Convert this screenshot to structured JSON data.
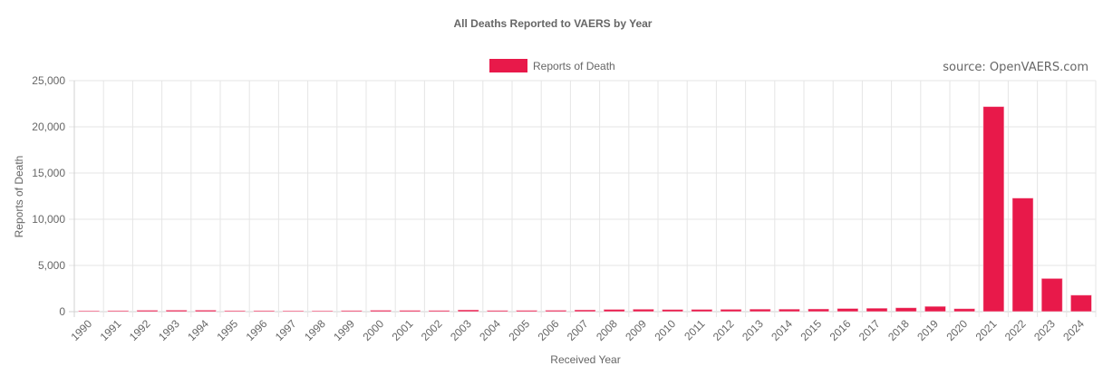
{
  "source_note": "source: OpenVAERS.com",
  "colors": {
    "bar_fill": "#e8194a",
    "bar_border": "#ffffff",
    "legend_fill": "#e8194a"
  },
  "chart_data": {
    "type": "bar",
    "title": "All Deaths Reported to VAERS by Year",
    "xlabel": "Received Year",
    "ylabel": "Reports of Death",
    "ylim": [
      0,
      25000
    ],
    "yticks": [
      0,
      5000,
      10000,
      15000,
      20000,
      25000
    ],
    "ytick_labels": [
      "0",
      "5,000",
      "10,000",
      "15,000",
      "20,000",
      "25,000"
    ],
    "grid": true,
    "legend_position": "top-center",
    "categories": [
      "1990",
      "1991",
      "1992",
      "1993",
      "1994",
      "1995",
      "1996",
      "1997",
      "1998",
      "1999",
      "2000",
      "2001",
      "2002",
      "2003",
      "2004",
      "2005",
      "2006",
      "2007",
      "2008",
      "2009",
      "2010",
      "2011",
      "2012",
      "2013",
      "2014",
      "2015",
      "2016",
      "2017",
      "2018",
      "2019",
      "2020",
      "2021",
      "2022",
      "2023",
      "2024"
    ],
    "series": [
      {
        "name": "Reports of Death",
        "values": [
          110,
          120,
          160,
          170,
          170,
          120,
          120,
          110,
          110,
          130,
          160,
          150,
          140,
          200,
          140,
          150,
          160,
          200,
          250,
          270,
          240,
          250,
          260,
          280,
          280,
          300,
          350,
          380,
          430,
          580,
          330,
          22200,
          12300,
          3600,
          1800
        ]
      }
    ]
  }
}
